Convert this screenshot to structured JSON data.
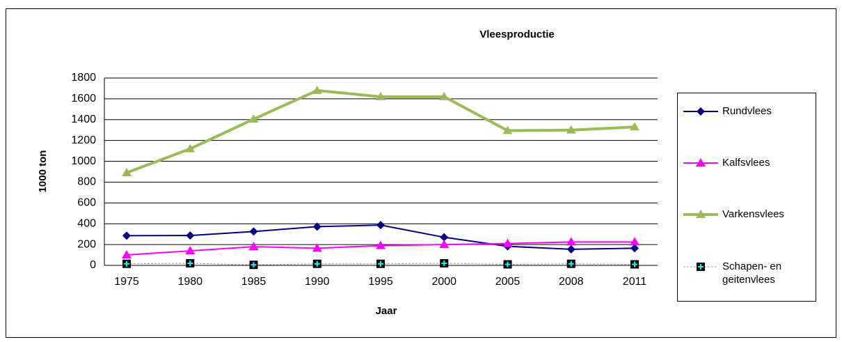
{
  "chart_data": {
    "type": "line",
    "title": "Vleesproductie",
    "x_label": "Jaar",
    "y_label": "1000 ton",
    "categories": [
      "1975",
      "1980",
      "1985",
      "1990",
      "1995",
      "2000",
      "2005",
      "2008",
      "2011"
    ],
    "series": [
      {
        "name": "Rundvlees",
        "color": "#000080",
        "marker": "diamond",
        "line_width": 2,
        "values": [
          285,
          287,
          325,
          372,
          387,
          270,
          183,
          155,
          165
        ]
      },
      {
        "name": "Kalfsvlees",
        "color": "#ff00ff",
        "marker": "triangle",
        "line_width": 2,
        "values": [
          100,
          140,
          180,
          165,
          190,
          200,
          210,
          225,
          225
        ]
      },
      {
        "name": "Varkensvlees",
        "color": "#9bbb59",
        "marker": "triangle",
        "line_width": 4,
        "values": [
          890,
          1120,
          1405,
          1680,
          1620,
          1620,
          1295,
          1300,
          1330
        ]
      },
      {
        "name": "Schapen- en geitenvlees",
        "color": "#999999",
        "marker": "square-plus",
        "line_width": 1,
        "dashed": true,
        "values": [
          15,
          20,
          5,
          15,
          15,
          20,
          10,
          15,
          10
        ]
      }
    ],
    "ylim": [
      0,
      1800
    ],
    "yticks": [
      0,
      200,
      400,
      600,
      800,
      1000,
      1200,
      1400,
      1600,
      1800
    ],
    "grid": true,
    "legend": "right"
  }
}
